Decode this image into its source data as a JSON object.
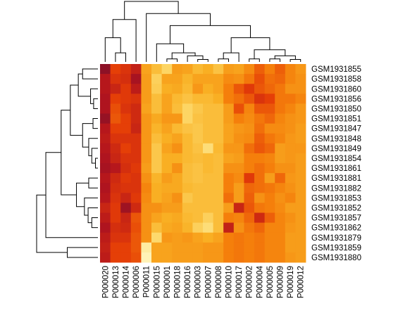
{
  "chart_data": {
    "type": "heatmap",
    "title": "",
    "xlabel": "",
    "ylabel": "",
    "columns": [
      "P000020",
      "P000013",
      "P000014",
      "P000006",
      "P000011",
      "P000015",
      "P000001",
      "P000018",
      "P000016",
      "P000003",
      "P000007",
      "P000008",
      "P000010",
      "P000017",
      "P000002",
      "P000004",
      "P000005",
      "P000009",
      "P000019",
      "P000012"
    ],
    "rows": [
      "GSM1931855",
      "GSM1931858",
      "GSM1931860",
      "GSM1931856",
      "GSM1931850",
      "GSM1931851",
      "GSM1931847",
      "GSM1931848",
      "GSM1931849",
      "GSM1931854",
      "GSM1931861",
      "GSM1931881",
      "GSM1931882",
      "GSM1931853",
      "GSM1931852",
      "GSM1931857",
      "GSM1931862",
      "GSM1931879",
      "GSM1931859",
      "GSM1931880"
    ],
    "values": [
      [
        0.08,
        0.34,
        0.3,
        0.22,
        0.62,
        0.72,
        0.82,
        0.6,
        0.62,
        0.7,
        0.66,
        0.74,
        0.6,
        0.62,
        0.54,
        0.42,
        0.5,
        0.42,
        0.52,
        0.58
      ],
      [
        0.18,
        0.3,
        0.28,
        0.14,
        0.6,
        0.8,
        0.62,
        0.62,
        0.68,
        0.62,
        0.62,
        0.62,
        0.54,
        0.56,
        0.48,
        0.38,
        0.46,
        0.44,
        0.52,
        0.56
      ],
      [
        0.18,
        0.24,
        0.32,
        0.2,
        0.6,
        0.78,
        0.66,
        0.64,
        0.7,
        0.58,
        0.66,
        0.62,
        0.5,
        0.4,
        0.32,
        0.4,
        0.44,
        0.48,
        0.56,
        0.56
      ],
      [
        0.16,
        0.34,
        0.32,
        0.3,
        0.6,
        0.72,
        0.62,
        0.7,
        0.74,
        0.7,
        0.7,
        0.66,
        0.5,
        0.46,
        0.4,
        0.3,
        0.34,
        0.48,
        0.48,
        0.52
      ],
      [
        0.16,
        0.38,
        0.3,
        0.26,
        0.62,
        0.72,
        0.62,
        0.72,
        0.82,
        0.76,
        0.72,
        0.72,
        0.6,
        0.38,
        0.52,
        0.4,
        0.4,
        0.48,
        0.52,
        0.58
      ],
      [
        0.1,
        0.4,
        0.34,
        0.26,
        0.58,
        0.64,
        0.58,
        0.58,
        0.82,
        0.74,
        0.72,
        0.72,
        0.6,
        0.5,
        0.54,
        0.48,
        0.44,
        0.52,
        0.56,
        0.58
      ],
      [
        0.18,
        0.34,
        0.34,
        0.24,
        0.58,
        0.68,
        0.62,
        0.7,
        0.74,
        0.76,
        0.72,
        0.72,
        0.62,
        0.58,
        0.56,
        0.46,
        0.54,
        0.54,
        0.56,
        0.6
      ],
      [
        0.2,
        0.3,
        0.3,
        0.3,
        0.58,
        0.72,
        0.66,
        0.62,
        0.7,
        0.76,
        0.72,
        0.72,
        0.62,
        0.56,
        0.54,
        0.42,
        0.48,
        0.52,
        0.58,
        0.6
      ],
      [
        0.18,
        0.26,
        0.34,
        0.3,
        0.58,
        0.76,
        0.62,
        0.56,
        0.7,
        0.74,
        0.86,
        0.7,
        0.58,
        0.58,
        0.46,
        0.4,
        0.44,
        0.6,
        0.58,
        0.58
      ],
      [
        0.16,
        0.24,
        0.3,
        0.3,
        0.58,
        0.76,
        0.66,
        0.66,
        0.7,
        0.72,
        0.7,
        0.72,
        0.62,
        0.6,
        0.5,
        0.5,
        0.52,
        0.6,
        0.58,
        0.6
      ],
      [
        0.14,
        0.18,
        0.28,
        0.32,
        0.6,
        0.76,
        0.66,
        0.56,
        0.72,
        0.74,
        0.7,
        0.72,
        0.56,
        0.56,
        0.5,
        0.46,
        0.5,
        0.56,
        0.56,
        0.6
      ],
      [
        0.18,
        0.26,
        0.32,
        0.3,
        0.56,
        0.68,
        0.6,
        0.64,
        0.72,
        0.74,
        0.72,
        0.72,
        0.5,
        0.54,
        0.32,
        0.46,
        0.6,
        0.44,
        0.58,
        0.6
      ],
      [
        0.16,
        0.28,
        0.3,
        0.3,
        0.52,
        0.66,
        0.64,
        0.64,
        0.7,
        0.72,
        0.72,
        0.72,
        0.5,
        0.6,
        0.44,
        0.46,
        0.48,
        0.52,
        0.56,
        0.6
      ],
      [
        0.18,
        0.3,
        0.24,
        0.32,
        0.54,
        0.66,
        0.62,
        0.56,
        0.76,
        0.72,
        0.72,
        0.72,
        0.46,
        0.6,
        0.42,
        0.56,
        0.5,
        0.56,
        0.52,
        0.6
      ],
      [
        0.24,
        0.32,
        0.12,
        0.26,
        0.56,
        0.56,
        0.6,
        0.6,
        0.72,
        0.72,
        0.72,
        0.72,
        0.6,
        0.24,
        0.4,
        0.48,
        0.5,
        0.54,
        0.6,
        0.6
      ],
      [
        0.2,
        0.32,
        0.24,
        0.4,
        0.56,
        0.62,
        0.66,
        0.64,
        0.7,
        0.72,
        0.8,
        0.72,
        0.5,
        0.52,
        0.44,
        0.26,
        0.42,
        0.52,
        0.56,
        0.6
      ],
      [
        0.16,
        0.28,
        0.26,
        0.38,
        0.56,
        0.72,
        0.64,
        0.62,
        0.68,
        0.8,
        0.86,
        0.72,
        0.22,
        0.56,
        0.48,
        0.44,
        0.52,
        0.52,
        0.58,
        0.6
      ],
      [
        0.2,
        0.3,
        0.3,
        0.4,
        0.56,
        0.84,
        0.58,
        0.6,
        0.58,
        0.62,
        0.66,
        0.62,
        0.5,
        0.48,
        0.5,
        0.48,
        0.52,
        0.52,
        0.6,
        0.6
      ],
      [
        0.22,
        0.34,
        0.34,
        0.4,
        0.94,
        0.62,
        0.62,
        0.6,
        0.6,
        0.6,
        0.58,
        0.58,
        0.5,
        0.48,
        0.5,
        0.48,
        0.52,
        0.52,
        0.6,
        0.6
      ],
      [
        0.2,
        0.34,
        0.34,
        0.38,
        0.98,
        0.62,
        0.62,
        0.6,
        0.6,
        0.6,
        0.58,
        0.58,
        0.5,
        0.48,
        0.5,
        0.48,
        0.52,
        0.52,
        0.58,
        0.6
      ]
    ],
    "color_scale": [
      "#6b0f2e",
      "#b2141e",
      "#e43c07",
      "#f57f0b",
      "#f9b124",
      "#fdd86a",
      "#fff6c0"
    ],
    "legend": "none",
    "grid": false,
    "column_dendrogram": true,
    "row_dendrogram": true
  }
}
